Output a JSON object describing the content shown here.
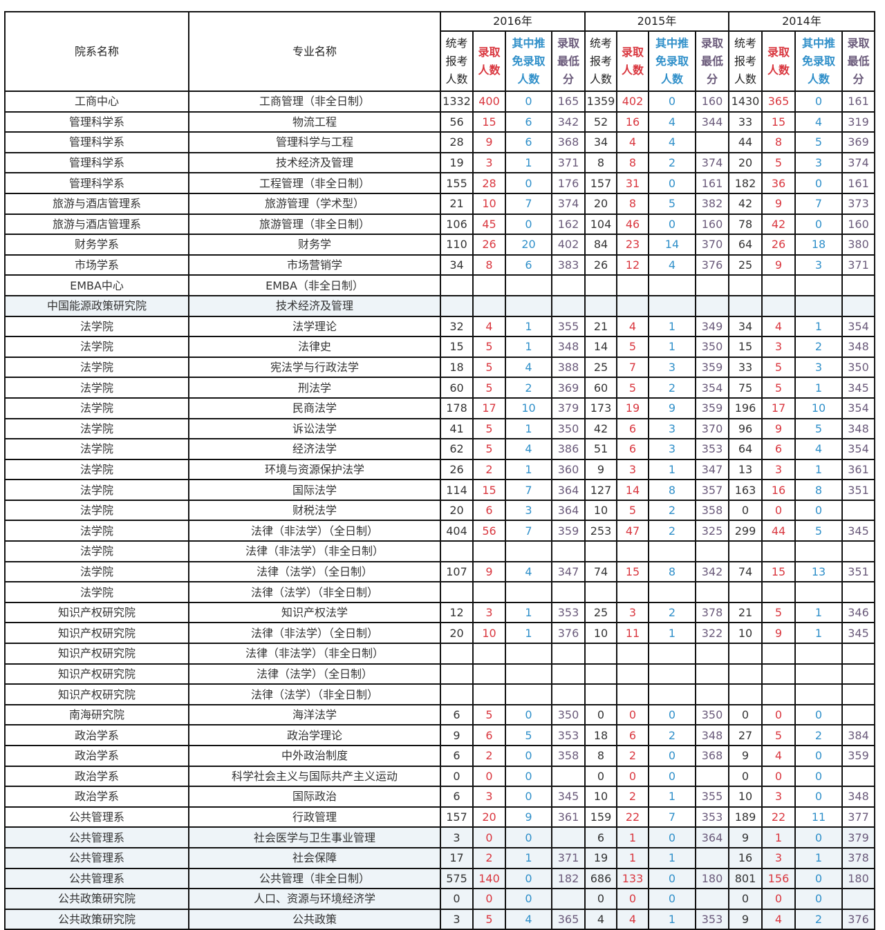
{
  "header": {
    "dept": "院系名称",
    "major": "专业名称",
    "years": [
      "2016年",
      "2015年",
      "2014年"
    ],
    "sub": [
      {
        "lines": [
          "统考",
          "报考",
          "人数"
        ],
        "kind": "exam"
      },
      {
        "lines": [
          "录取",
          "人数"
        ],
        "kind": "adm"
      },
      {
        "lines": [
          "其中推",
          "免录取",
          "人数"
        ],
        "kind": "rec"
      },
      {
        "lines": [
          "录取",
          "最低",
          "分"
        ],
        "kind": "min"
      }
    ]
  },
  "colors": {
    "exam": "#333333",
    "adm": "#d9363e",
    "rec": "#2f8fc9",
    "min": "#6a5a7a"
  },
  "rows": [
    {
      "dept": "工商中心",
      "major": "工商管理（非全日制）",
      "cells": [
        "1332",
        "400",
        "0",
        "165",
        "1359",
        "402",
        "0",
        "160",
        "1430",
        "365",
        "0",
        "161"
      ]
    },
    {
      "dept": "管理科学系",
      "major": "物流工程",
      "cells": [
        "56",
        "15",
        "6",
        "342",
        "52",
        "16",
        "4",
        "344",
        "33",
        "15",
        "4",
        "319"
      ]
    },
    {
      "dept": "管理科学系",
      "major": "管理科学与工程",
      "cells": [
        "28",
        "9",
        "6",
        "368",
        "34",
        "4",
        "4",
        "",
        "44",
        "8",
        "5",
        "369"
      ]
    },
    {
      "dept": "管理科学系",
      "major": "技术经济及管理",
      "cells": [
        "19",
        "3",
        "1",
        "371",
        "8",
        "8",
        "2",
        "374",
        "20",
        "5",
        "3",
        "374"
      ]
    },
    {
      "dept": "管理科学系",
      "major": "工程管理（非全日制）",
      "cells": [
        "155",
        "28",
        "0",
        "176",
        "157",
        "31",
        "0",
        "161",
        "182",
        "36",
        "0",
        "161"
      ]
    },
    {
      "dept": "旅游与酒店管理系",
      "major": "旅游管理（学术型）",
      "cells": [
        "21",
        "10",
        "7",
        "374",
        "20",
        "8",
        "5",
        "382",
        "42",
        "9",
        "7",
        "373"
      ]
    },
    {
      "dept": "旅游与酒店管理系",
      "major": "旅游管理（非全日制）",
      "cells": [
        "106",
        "45",
        "0",
        "162",
        "104",
        "46",
        "0",
        "160",
        "78",
        "42",
        "0",
        "160"
      ]
    },
    {
      "dept": "财务学系",
      "major": "财务学",
      "cells": [
        "110",
        "26",
        "20",
        "402",
        "84",
        "23",
        "14",
        "370",
        "64",
        "26",
        "18",
        "380"
      ]
    },
    {
      "dept": "市场学系",
      "major": "市场营销学",
      "cells": [
        "34",
        "8",
        "6",
        "383",
        "26",
        "12",
        "4",
        "376",
        "25",
        "9",
        "3",
        "371"
      ]
    },
    {
      "dept": "EMBA中心",
      "major": "EMBA（非全日制）",
      "cells": [
        "",
        "",
        "",
        "",
        "",
        "",
        "",
        "",
        "",
        "",
        "",
        ""
      ]
    },
    {
      "dept": "中国能源政策研究院",
      "major": "技术经济及管理",
      "cells": [
        "",
        "",
        "",
        "",
        "",
        "",
        "",
        "",
        "",
        "",
        "",
        ""
      ]
    },
    {
      "dept": "法学院",
      "major": "法学理论",
      "cells": [
        "32",
        "4",
        "1",
        "355",
        "21",
        "4",
        "1",
        "349",
        "34",
        "4",
        "1",
        "354"
      ]
    },
    {
      "dept": "法学院",
      "major": "法律史",
      "cells": [
        "15",
        "5",
        "1",
        "348",
        "14",
        "5",
        "1",
        "350",
        "15",
        "3",
        "2",
        "348"
      ]
    },
    {
      "dept": "法学院",
      "major": "宪法学与行政法学",
      "cells": [
        "18",
        "5",
        "4",
        "388",
        "25",
        "7",
        "3",
        "359",
        "33",
        "5",
        "3",
        "350"
      ]
    },
    {
      "dept": "法学院",
      "major": "刑法学",
      "cells": [
        "60",
        "5",
        "2",
        "369",
        "60",
        "5",
        "2",
        "354",
        "75",
        "5",
        "1",
        "345"
      ]
    },
    {
      "dept": "法学院",
      "major": "民商法学",
      "cells": [
        "178",
        "17",
        "10",
        "379",
        "173",
        "19",
        "9",
        "359",
        "196",
        "17",
        "10",
        "354"
      ]
    },
    {
      "dept": "法学院",
      "major": "诉讼法学",
      "cells": [
        "41",
        "5",
        "1",
        "350",
        "42",
        "6",
        "3",
        "370",
        "96",
        "9",
        "5",
        "348"
      ]
    },
    {
      "dept": "法学院",
      "major": "经济法学",
      "cells": [
        "62",
        "5",
        "4",
        "386",
        "51",
        "6",
        "3",
        "353",
        "64",
        "6",
        "4",
        "354"
      ]
    },
    {
      "dept": "法学院",
      "major": "环境与资源保护法学",
      "cells": [
        "26",
        "2",
        "1",
        "360",
        "9",
        "3",
        "1",
        "347",
        "13",
        "3",
        "1",
        "361"
      ]
    },
    {
      "dept": "法学院",
      "major": "国际法学",
      "cells": [
        "114",
        "15",
        "7",
        "364",
        "127",
        "14",
        "8",
        "357",
        "163",
        "16",
        "8",
        "351"
      ]
    },
    {
      "dept": "法学院",
      "major": "财税法学",
      "cells": [
        "20",
        "6",
        "3",
        "364",
        "10",
        "5",
        "2",
        "358",
        "0",
        "0",
        "0",
        ""
      ]
    },
    {
      "dept": "法学院",
      "major": "法律（非法学）（全日制）",
      "cells": [
        "404",
        "56",
        "7",
        "359",
        "253",
        "47",
        "2",
        "325",
        "299",
        "44",
        "5",
        "345"
      ]
    },
    {
      "dept": "法学院",
      "major": "法律（非法学）（非全日制）",
      "cells": [
        "",
        "",
        "",
        "",
        "",
        "",
        "",
        "",
        "",
        "",
        "",
        ""
      ]
    },
    {
      "dept": "法学院",
      "major": "法律（法学）（全日制）",
      "cells": [
        "107",
        "9",
        "4",
        "347",
        "74",
        "15",
        "8",
        "342",
        "74",
        "15",
        "13",
        "351"
      ]
    },
    {
      "dept": "法学院",
      "major": "法律（法学）（非全日制）",
      "cells": [
        "",
        "",
        "",
        "",
        "",
        "",
        "",
        "",
        "",
        "",
        "",
        ""
      ]
    },
    {
      "dept": "知识产权研究院",
      "major": "知识产权法学",
      "cells": [
        "12",
        "3",
        "1",
        "353",
        "25",
        "3",
        "2",
        "378",
        "21",
        "5",
        "1",
        "346"
      ]
    },
    {
      "dept": "知识产权研究院",
      "major": "法律（非法学）（全日制）",
      "cells": [
        "20",
        "10",
        "1",
        "376",
        "10",
        "11",
        "1",
        "322",
        "10",
        "9",
        "1",
        "345"
      ]
    },
    {
      "dept": "知识产权研究院",
      "major": "法律（非法学）（非全日制）",
      "cells": [
        "",
        "",
        "",
        "",
        "",
        "",
        "",
        "",
        "",
        "",
        "",
        ""
      ]
    },
    {
      "dept": "知识产权研究院",
      "major": "法律（法学）（全日制）",
      "cells": [
        "",
        "",
        "",
        "",
        "",
        "",
        "",
        "",
        "",
        "",
        "",
        ""
      ]
    },
    {
      "dept": "知识产权研究院",
      "major": "法律（法学）（非全日制）",
      "cells": [
        "",
        "",
        "",
        "",
        "",
        "",
        "",
        "",
        "",
        "",
        "",
        ""
      ]
    },
    {
      "dept": "南海研究院",
      "major": "海洋法学",
      "cells": [
        "6",
        "5",
        "0",
        "350",
        "0",
        "0",
        "0",
        "350",
        "0",
        "0",
        "0",
        ""
      ]
    },
    {
      "dept": "政治学系",
      "major": "政治学理论",
      "cells": [
        "9",
        "6",
        "5",
        "353",
        "18",
        "6",
        "2",
        "348",
        "27",
        "5",
        "2",
        "384"
      ]
    },
    {
      "dept": "政治学系",
      "major": "中外政治制度",
      "cells": [
        "6",
        "2",
        "0",
        "358",
        "8",
        "2",
        "0",
        "368",
        "9",
        "4",
        "0",
        "359"
      ]
    },
    {
      "dept": "政治学系",
      "major": "科学社会主义与国际共产主义运动",
      "cells": [
        "0",
        "0",
        "0",
        "",
        "0",
        "0",
        "0",
        "",
        "0",
        "0",
        "0",
        ""
      ]
    },
    {
      "dept": "政治学系",
      "major": "国际政治",
      "cells": [
        "6",
        "3",
        "0",
        "345",
        "10",
        "2",
        "1",
        "355",
        "10",
        "3",
        "0",
        "348"
      ]
    },
    {
      "dept": "公共管理系",
      "major": "行政管理",
      "cells": [
        "157",
        "20",
        "9",
        "361",
        "159",
        "22",
        "7",
        "353",
        "189",
        "22",
        "11",
        "377"
      ]
    },
    {
      "dept": "公共管理系",
      "major": "社会医学与卫生事业管理",
      "cells": [
        "3",
        "0",
        "0",
        "",
        "6",
        "1",
        "0",
        "364",
        "9",
        "1",
        "0",
        "379"
      ]
    },
    {
      "dept": "公共管理系",
      "major": "社会保障",
      "cells": [
        "17",
        "2",
        "1",
        "371",
        "19",
        "1",
        "1",
        "",
        "16",
        "3",
        "1",
        "378"
      ]
    },
    {
      "dept": "公共管理系",
      "major": "公共管理（非全日制）",
      "cells": [
        "575",
        "140",
        "0",
        "182",
        "686",
        "133",
        "0",
        "180",
        "801",
        "156",
        "0",
        "180"
      ]
    },
    {
      "dept": "公共政策研究院",
      "major": "人口、资源与环境经济学",
      "cells": [
        "0",
        "0",
        "0",
        "",
        "0",
        "0",
        "0",
        "",
        "0",
        "0",
        "0",
        ""
      ]
    },
    {
      "dept": "公共政策研究院",
      "major": "公共政策",
      "cells": [
        "3",
        "5",
        "4",
        "365",
        "4",
        "4",
        "1",
        "353",
        "9",
        "4",
        "2",
        "376"
      ]
    }
  ]
}
